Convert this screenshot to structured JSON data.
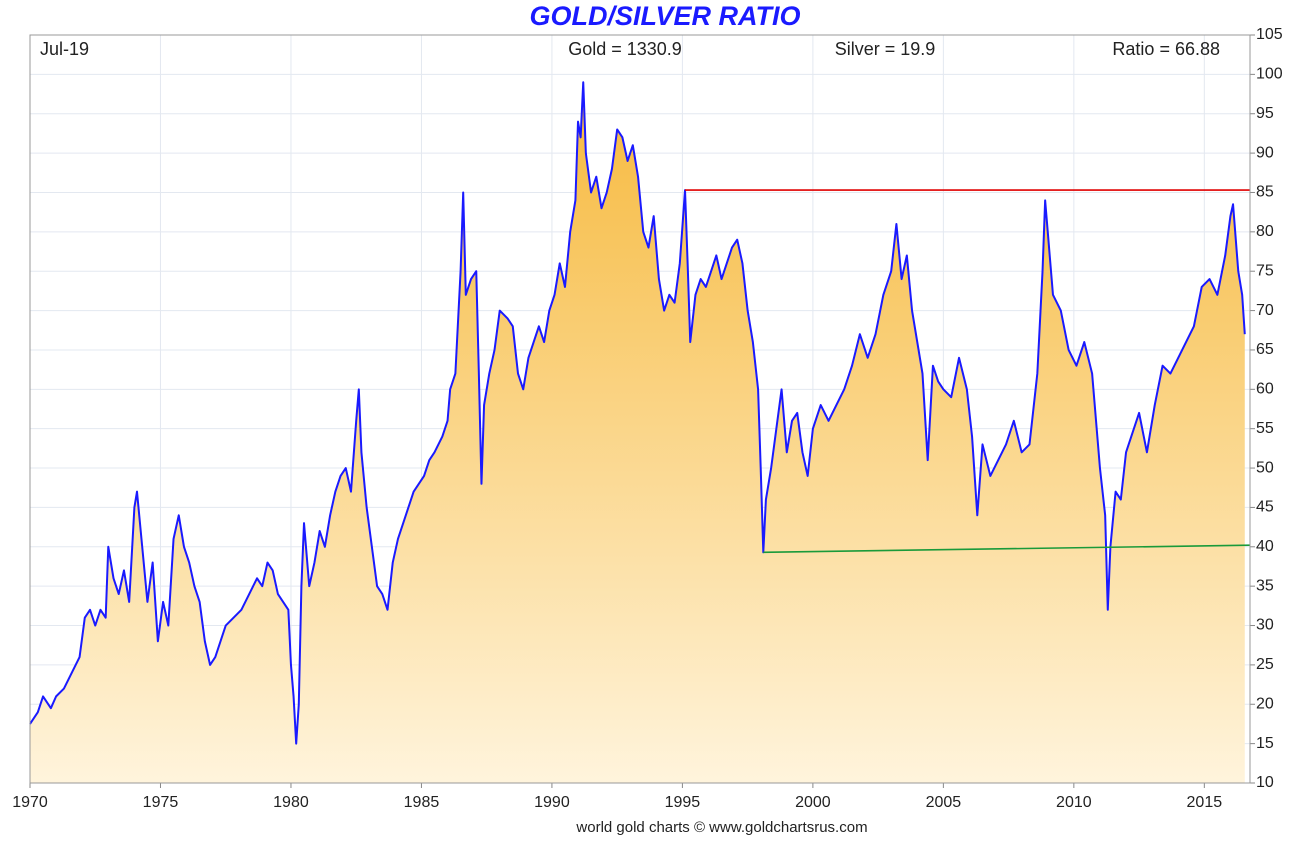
{
  "chart_data": {
    "type": "area",
    "title": "GOLD/SILVER RATIO",
    "date_label": "Jul-19",
    "gold_label": "Gold = 1330.9",
    "silver_label": "Silver = 19.9",
    "ratio_label": "Ratio = 66.88",
    "source": "world gold charts © www.goldchartsrus.com",
    "color": "#1a1aff",
    "grid": true,
    "xlim": [
      1970,
      2016.75
    ],
    "ylim": [
      10,
      105
    ],
    "xticks": [
      1970,
      1975,
      1980,
      1985,
      1990,
      1995,
      2000,
      2005,
      2010,
      2015
    ],
    "yticks": [
      10,
      15,
      20,
      25,
      30,
      35,
      40,
      45,
      50,
      55,
      60,
      65,
      70,
      75,
      80,
      85,
      90,
      95,
      100,
      105
    ],
    "x": [
      1970.0,
      1970.3,
      1970.5,
      1970.8,
      1971.0,
      1971.3,
      1971.6,
      1971.9,
      1972.1,
      1972.3,
      1972.5,
      1972.7,
      1972.9,
      1973.0,
      1973.2,
      1973.4,
      1973.6,
      1973.8,
      1974.0,
      1974.1,
      1974.3,
      1974.5,
      1974.7,
      1974.9,
      1975.1,
      1975.3,
      1975.5,
      1975.7,
      1975.9,
      1976.1,
      1976.3,
      1976.5,
      1976.7,
      1976.9,
      1977.1,
      1977.3,
      1977.5,
      1977.8,
      1978.1,
      1978.4,
      1978.7,
      1978.9,
      1979.1,
      1979.3,
      1979.5,
      1979.7,
      1979.9,
      1980.0,
      1980.1,
      1980.2,
      1980.3,
      1980.4,
      1980.5,
      1980.7,
      1980.9,
      1981.1,
      1981.3,
      1981.5,
      1981.7,
      1981.9,
      1982.1,
      1982.3,
      1982.5,
      1982.6,
      1982.7,
      1982.9,
      1983.1,
      1983.3,
      1983.5,
      1983.7,
      1983.9,
      1984.1,
      1984.3,
      1984.5,
      1984.7,
      1984.9,
      1985.1,
      1985.3,
      1985.5,
      1985.8,
      1986.0,
      1986.1,
      1986.3,
      1986.5,
      1986.6,
      1986.7,
      1986.9,
      1987.1,
      1987.2,
      1987.3,
      1987.4,
      1987.6,
      1987.8,
      1988.0,
      1988.3,
      1988.5,
      1988.7,
      1988.9,
      1989.1,
      1989.3,
      1989.5,
      1989.7,
      1989.9,
      1990.1,
      1990.3,
      1990.5,
      1990.7,
      1990.9,
      1991.0,
      1991.1,
      1991.2,
      1991.3,
      1991.5,
      1991.7,
      1991.9,
      1992.1,
      1992.3,
      1992.5,
      1992.7,
      1992.9,
      1993.1,
      1993.3,
      1993.5,
      1993.7,
      1993.9,
      1994.1,
      1994.3,
      1994.5,
      1994.7,
      1994.9,
      1995.1,
      1995.2,
      1995.3,
      1995.5,
      1995.7,
      1995.9,
      1996.1,
      1996.3,
      1996.5,
      1996.7,
      1996.9,
      1997.1,
      1997.3,
      1997.5,
      1997.7,
      1997.9,
      1998.0,
      1998.1,
      1998.2,
      1998.4,
      1998.6,
      1998.8,
      1999.0,
      1999.2,
      1999.4,
      1999.6,
      1999.8,
      2000.0,
      2000.3,
      2000.6,
      2000.9,
      2001.2,
      2001.5,
      2001.8,
      2002.1,
      2002.4,
      2002.7,
      2003.0,
      2003.2,
      2003.4,
      2003.6,
      2003.8,
      2004.0,
      2004.2,
      2004.4,
      2004.6,
      2004.8,
      2005.0,
      2005.3,
      2005.6,
      2005.9,
      2006.1,
      2006.3,
      2006.5,
      2006.8,
      2007.1,
      2007.4,
      2007.7,
      2008.0,
      2008.3,
      2008.6,
      2008.8,
      2008.9,
      2009.0,
      2009.2,
      2009.5,
      2009.8,
      2010.1,
      2010.4,
      2010.7,
      2011.0,
      2011.2,
      2011.3,
      2011.4,
      2011.6,
      2011.8,
      2012.0,
      2012.2,
      2012.5,
      2012.8,
      2013.1,
      2013.4,
      2013.7,
      2014.0,
      2014.3,
      2014.6,
      2014.9,
      2015.2,
      2015.5,
      2015.8,
      2016.0,
      2016.1,
      2016.3,
      2016.45,
      2016.55
    ],
    "values": [
      17.5,
      19,
      21,
      19.5,
      21,
      22,
      24,
      26,
      31,
      32,
      30,
      32,
      31,
      40,
      36,
      34,
      37,
      33,
      45,
      47,
      40,
      33,
      38,
      28,
      33,
      30,
      41,
      44,
      40,
      38,
      35,
      33,
      28,
      25,
      26,
      28,
      30,
      31,
      32,
      34,
      36,
      35,
      38,
      37,
      34,
      33,
      32,
      25,
      21,
      15,
      20,
      35,
      43,
      35,
      38,
      42,
      40,
      44,
      47,
      49,
      50,
      47,
      56,
      60,
      52,
      45,
      40,
      35,
      34,
      32,
      38,
      41,
      43,
      45,
      47,
      48,
      49,
      51,
      52,
      54,
      56,
      60,
      62,
      75,
      85,
      72,
      74,
      75,
      62,
      48,
      58,
      62,
      65,
      70,
      69,
      68,
      62,
      60,
      64,
      66,
      68,
      66,
      70,
      72,
      76,
      73,
      80,
      84,
      94,
      92,
      99,
      90,
      85,
      87,
      83,
      85,
      88,
      93,
      92,
      89,
      91,
      87,
      80,
      78,
      82,
      74,
      70,
      72,
      71,
      76,
      85.3,
      76,
      66,
      72,
      74,
      73,
      75,
      77,
      74,
      76,
      78,
      79,
      76,
      70,
      66,
      60,
      50,
      39.3,
      46,
      50,
      55,
      60,
      52,
      56,
      57,
      52,
      49,
      55,
      58,
      56,
      58,
      60,
      63,
      67,
      64,
      67,
      72,
      75,
      81,
      74,
      77,
      70,
      66,
      62,
      51,
      63,
      61,
      60,
      59,
      64,
      60,
      54,
      44,
      53,
      49,
      51,
      53,
      56,
      52,
      53,
      62,
      75,
      84,
      80,
      72,
      70,
      65,
      63,
      66,
      62,
      50,
      44,
      32,
      40,
      47,
      46,
      52,
      54,
      57,
      52,
      58,
      63,
      62,
      64,
      66,
      68,
      73,
      74,
      72,
      77,
      82,
      83.5,
      75,
      72,
      67
    ],
    "reference_lines": [
      {
        "color": "#e00000",
        "x": [
          1995.1,
          2016.75
        ],
        "values": [
          85.3,
          85.3
        ]
      },
      {
        "color": "#1a9a3a",
        "x": [
          1998.1,
          2016.75
        ],
        "values": [
          39.3,
          40.2
        ]
      }
    ]
  }
}
